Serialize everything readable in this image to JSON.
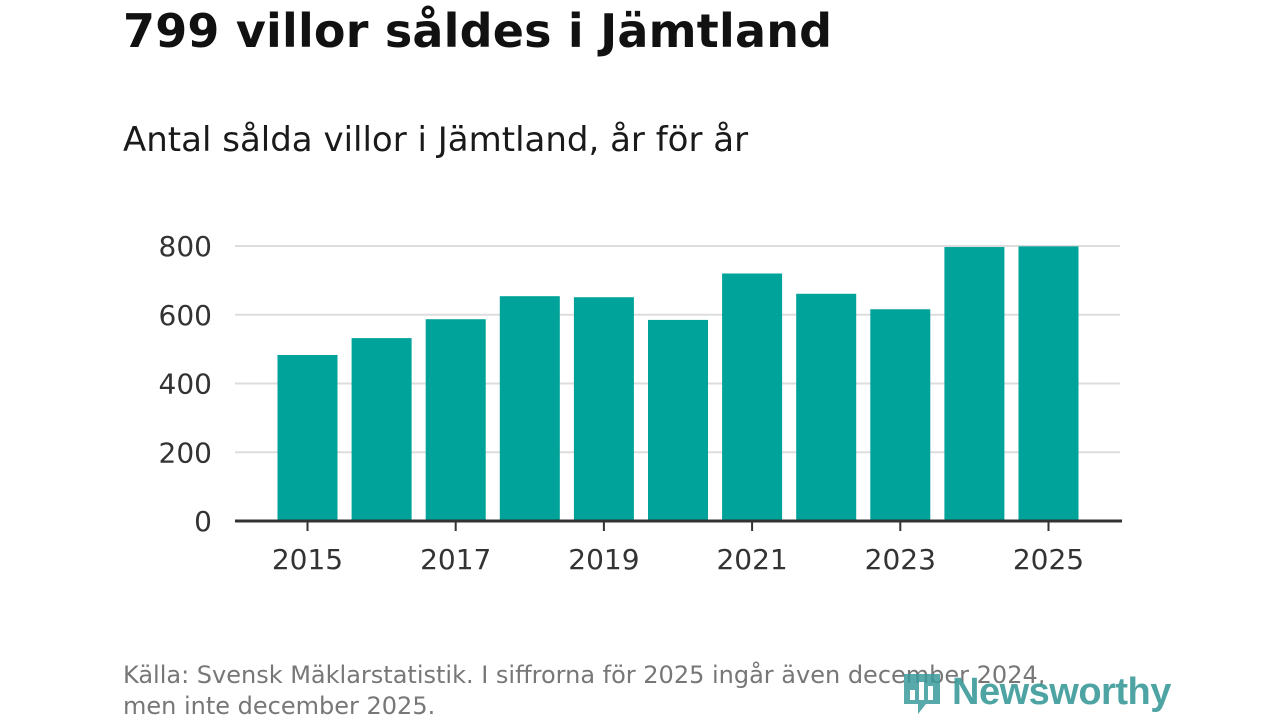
{
  "title": "799 villor såldes i Jämtland",
  "subtitle": "Antal sålda villor i Jämtland, år för år",
  "source": {
    "line1": "Källa: Svensk Mäklarstatistik. I siffrorna för 2025 ingår även december 2024,",
    "line2": "men inte december 2025."
  },
  "logo": {
    "name": "Newsworthy",
    "icon": "bar-chart-icon"
  },
  "colors": {
    "bar": "#00a39a",
    "grid": "#dddddd",
    "axis": "#333333",
    "logo": "#3a9b9a"
  },
  "chart_data": {
    "type": "bar",
    "title": "Antal sålda villor i Jämtland, år för år",
    "categories": [
      "2015",
      "2016",
      "2017",
      "2018",
      "2019",
      "2020",
      "2021",
      "2022",
      "2023",
      "2024",
      "2025"
    ],
    "values": [
      483,
      532,
      587,
      654,
      651,
      585,
      720,
      661,
      616,
      797,
      799
    ],
    "ylim": [
      0,
      800
    ],
    "yticks": [
      0,
      200,
      400,
      600,
      800
    ],
    "ytick_labels": [
      "0",
      "200",
      "400",
      "600",
      "800"
    ],
    "xtick_labels": [
      "2015",
      "2017",
      "2019",
      "2021",
      "2023",
      "2025"
    ],
    "xlabel": "",
    "ylabel": "",
    "grid": true
  }
}
